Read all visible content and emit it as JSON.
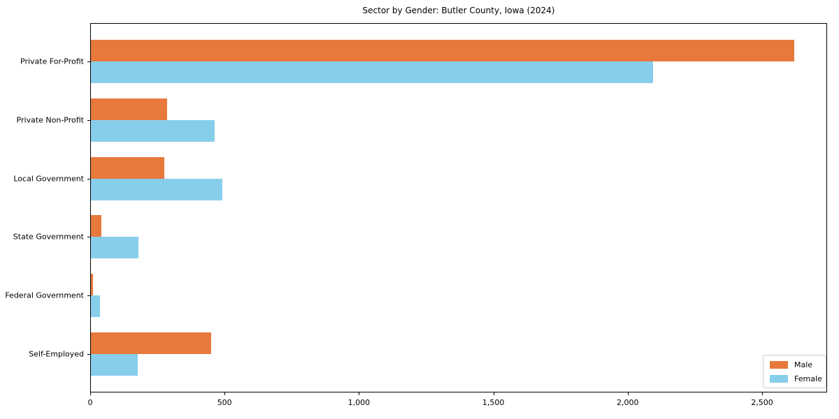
{
  "chart_data": {
    "type": "bar",
    "orientation": "horizontal",
    "title": "Sector by Gender: Butler County, Iowa (2024)",
    "categories": [
      "Private For-Profit",
      "Private Non-Profit",
      "Local Government",
      "State Government",
      "Federal Government",
      "Self-Employed"
    ],
    "series": [
      {
        "name": "Male",
        "color": "#e8793d",
        "values": [
          2618,
          284,
          273,
          39,
          7,
          447
        ]
      },
      {
        "name": "Female",
        "color": "#87ceeb",
        "values": [
          2091,
          460,
          488,
          177,
          33,
          174
        ]
      }
    ],
    "xlabel": "",
    "ylabel": "",
    "xlim": [
      0,
      2742
    ],
    "xticks": [
      {
        "value": 0,
        "label": "0"
      },
      {
        "value": 500,
        "label": "500"
      },
      {
        "value": 1000,
        "label": "1,000"
      },
      {
        "value": 1500,
        "label": "1,500"
      },
      {
        "value": 2000,
        "label": "2,000"
      },
      {
        "value": 2500,
        "label": "2,500"
      }
    ],
    "grid": false,
    "legend": {
      "position": "lower-right",
      "entries": [
        "Male",
        "Female"
      ]
    }
  }
}
